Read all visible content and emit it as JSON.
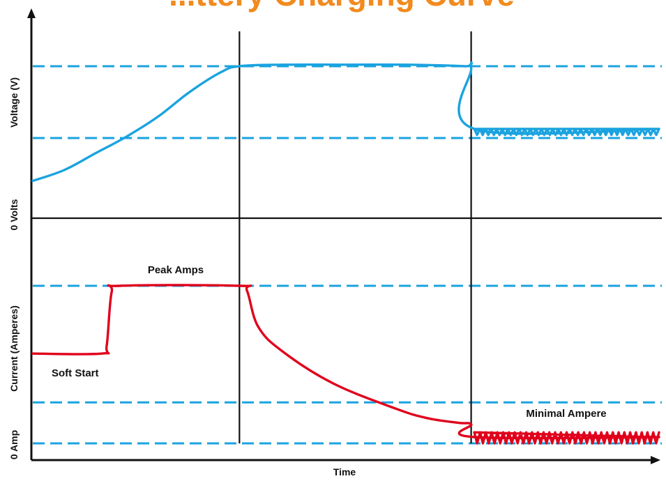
{
  "chart_data": {
    "type": "line",
    "title": "...ttery Charging Curve",
    "xlabel": "Time",
    "colors": {
      "voltage": "#1aa3df",
      "current": "#e0001b",
      "axis": "#111111",
      "guide": "#1aa3df",
      "title": "#f28a1e"
    },
    "x_range": [
      0,
      100
    ],
    "phase_boundaries": [
      33,
      70
    ],
    "voltage": {
      "ylabel": "Voltage (V)",
      "baseline_label": "0 Volts",
      "y_range": [
        0,
        100
      ],
      "reference_levels": [
        46,
        93
      ],
      "series": {
        "name": "",
        "x": [
          0,
          5,
          10,
          15,
          20,
          25,
          30,
          33,
          40,
          50,
          60,
          69,
          70,
          70.5,
          100
        ],
        "y": [
          18,
          25,
          36,
          47,
          60,
          76,
          89,
          93,
          94,
          94,
          94,
          93,
          92,
          52,
          52
        ],
        "ripple": {
          "x_start": 70.5,
          "x_end": 100,
          "low": 48,
          "high": 52,
          "cycles": 33
        }
      }
    },
    "current": {
      "ylabel": "Current  (Amperes)",
      "baseline_label": "0 Amp",
      "y_range": [
        0,
        100
      ],
      "reference_levels": [
        0,
        26,
        100
      ],
      "series": {
        "name": "",
        "x": [
          0,
          11,
          11.8,
          12.6,
          14,
          33,
          34.2,
          36,
          40,
          48,
          58,
          63,
          68,
          70,
          70.5,
          100
        ],
        "y": [
          57,
          57,
          62,
          96,
          100,
          100,
          97,
          74,
          58,
          38,
          22,
          16,
          13,
          12,
          4,
          4
        ],
        "ripple": {
          "x_start": 70.5,
          "x_end": 100,
          "low": 0,
          "high": 7,
          "cycles": 32
        }
      },
      "annotations": [
        {
          "text": "Peak Amps",
          "x": 20,
          "y": 108
        },
        {
          "text": "Soft Start",
          "x": 3,
          "y": 44
        },
        {
          "text": "Minimal Ampere",
          "x": 85,
          "y": 18
        }
      ]
    }
  }
}
